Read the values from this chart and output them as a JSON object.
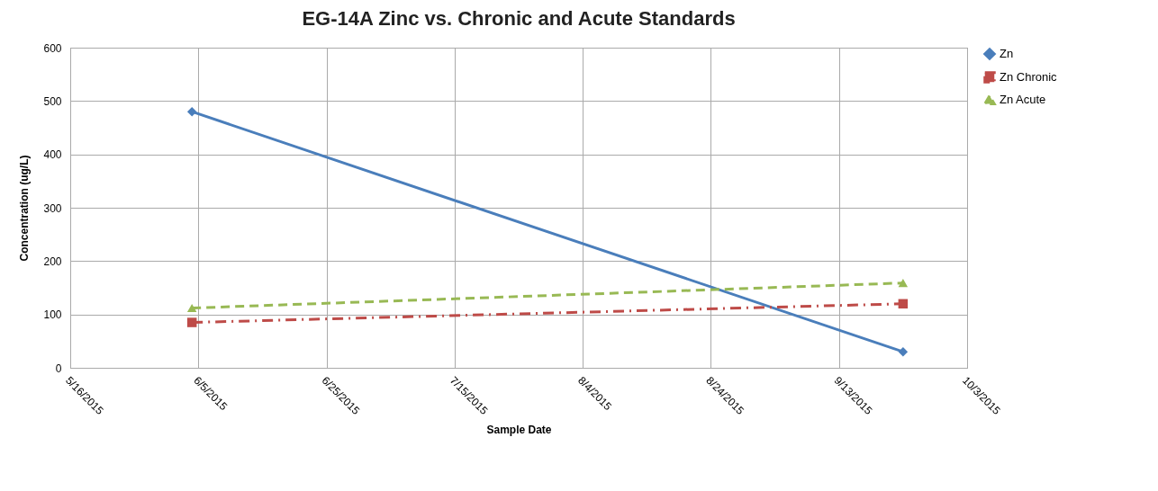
{
  "chart_data": {
    "type": "line",
    "title": "EG-14A Zinc vs. Chronic and Acute Standards",
    "xlabel": "Sample Date",
    "ylabel": "Concentration (ug/L)",
    "x": [
      "2015-06-04",
      "2015-09-23"
    ],
    "series": [
      {
        "name": "Zn",
        "color": "#4a7ebb",
        "values": [
          480,
          30
        ],
        "marker": "diamond",
        "line_style": "solid"
      },
      {
        "name": "Zn Chronic",
        "color": "#be4b48",
        "values": [
          85,
          120
        ],
        "marker": "square",
        "line_style": "dashdot"
      },
      {
        "name": "Zn Acute",
        "color": "#98b954",
        "values": [
          112,
          159
        ],
        "marker": "triangle",
        "line_style": "dashed"
      }
    ],
    "xlim": [
      "2015-05-16",
      "2015-10-03"
    ],
    "xticks": [
      {
        "value": "2015-05-16",
        "label": "5/16/2015"
      },
      {
        "value": "2015-06-05",
        "label": "6/5/2015"
      },
      {
        "value": "2015-06-25",
        "label": "6/25/2015"
      },
      {
        "value": "2015-07-15",
        "label": "7/15/2015"
      },
      {
        "value": "2015-08-04",
        "label": "8/4/2015"
      },
      {
        "value": "2015-08-24",
        "label": "8/24/2015"
      },
      {
        "value": "2015-09-13",
        "label": "9/13/2015"
      },
      {
        "value": "2015-10-03",
        "label": "10/3/2015"
      }
    ],
    "ylim": [
      0,
      600
    ],
    "yticks": [
      0,
      100,
      200,
      300,
      400,
      500,
      600
    ],
    "grid": true,
    "legend": "right"
  }
}
